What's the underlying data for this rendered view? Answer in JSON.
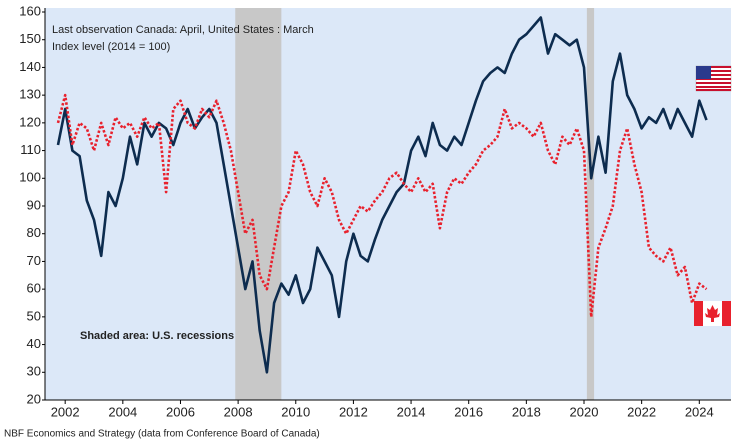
{
  "chart_data": {
    "type": "line",
    "annotations": [
      "Last observation Canada: April, United States : March",
      "Index level (2014 = 100)",
      "Shaded area: U.S. recessions"
    ],
    "source": "NBF Economics and Strategy (data from Conference Board of Canada)",
    "recessions": [
      [
        2007.9,
        2009.5
      ],
      [
        2020.1,
        2020.35
      ]
    ],
    "xlim": [
      2001.3,
      2025.1
    ],
    "xticks": [
      2002,
      2004,
      2006,
      2008,
      2010,
      2012,
      2014,
      2016,
      2018,
      2020,
      2022,
      2024
    ],
    "ylim": [
      20,
      160
    ],
    "yticks": [
      20,
      30,
      40,
      50,
      60,
      70,
      80,
      90,
      100,
      110,
      120,
      130,
      140,
      150,
      160
    ],
    "grid": false,
    "x": [
      2001.75,
      2002,
      2002.25,
      2002.5,
      2002.75,
      2003,
      2003.25,
      2003.5,
      2003.75,
      2004,
      2004.25,
      2004.5,
      2004.75,
      2005,
      2005.25,
      2005.5,
      2005.75,
      2006,
      2006.25,
      2006.5,
      2006.75,
      2007,
      2007.25,
      2007.5,
      2007.75,
      2008,
      2008.25,
      2008.5,
      2008.75,
      2009,
      2009.25,
      2009.5,
      2009.75,
      2010,
      2010.25,
      2010.5,
      2010.75,
      2011,
      2011.25,
      2011.5,
      2011.75,
      2012,
      2012.25,
      2012.5,
      2012.75,
      2013,
      2013.25,
      2013.5,
      2013.75,
      2014,
      2014.25,
      2014.5,
      2014.75,
      2015,
      2015.25,
      2015.5,
      2015.75,
      2016,
      2016.25,
      2016.5,
      2016.75,
      2017,
      2017.25,
      2017.5,
      2017.75,
      2018,
      2018.25,
      2018.5,
      2018.75,
      2019,
      2019.25,
      2019.5,
      2019.75,
      2020,
      2020.25,
      2020.5,
      2020.75,
      2021,
      2021.25,
      2021.5,
      2021.75,
      2022,
      2022.25,
      2022.5,
      2022.75,
      2023,
      2023.25,
      2023.5,
      2023.75,
      2024,
      2024.25
    ],
    "series": [
      {
        "color": "#0d2c4f",
        "style": "solid",
        "values": [
          112,
          125,
          110,
          108,
          92,
          85,
          72,
          95,
          90,
          100,
          115,
          105,
          120,
          115,
          120,
          118,
          112,
          120,
          125,
          118,
          122,
          125,
          120,
          105,
          90,
          75,
          60,
          70,
          45,
          30,
          55,
          62,
          58,
          65,
          55,
          60,
          75,
          70,
          65,
          50,
          70,
          80,
          72,
          70,
          78,
          85,
          90,
          95,
          98,
          110,
          115,
          108,
          120,
          112,
          110,
          115,
          112,
          120,
          128,
          135,
          138,
          140,
          138,
          145,
          150,
          152,
          155,
          158,
          145,
          152,
          150,
          148,
          150,
          140,
          100,
          115,
          102,
          135,
          145,
          130,
          125,
          118,
          122,
          120,
          125,
          118,
          125,
          120,
          115,
          128,
          121
        ]
      },
      {
        "color": "#e8212d",
        "style": "dotted",
        "values": [
          120,
          130,
          112,
          120,
          118,
          110,
          120,
          112,
          122,
          118,
          120,
          115,
          122,
          118,
          120,
          95,
          125,
          128,
          120,
          118,
          125,
          122,
          128,
          120,
          110,
          95,
          80,
          85,
          65,
          60,
          75,
          90,
          95,
          110,
          105,
          95,
          90,
          100,
          95,
          85,
          80,
          85,
          90,
          88,
          92,
          95,
          100,
          102,
          98,
          95,
          100,
          95,
          98,
          82,
          95,
          100,
          98,
          102,
          105,
          110,
          112,
          115,
          125,
          118,
          120,
          118,
          115,
          120,
          110,
          105,
          115,
          112,
          118,
          110,
          50,
          75,
          82,
          90,
          110,
          118,
          105,
          95,
          75,
          72,
          70,
          75,
          65,
          68,
          55,
          62,
          60
        ]
      }
    ]
  }
}
